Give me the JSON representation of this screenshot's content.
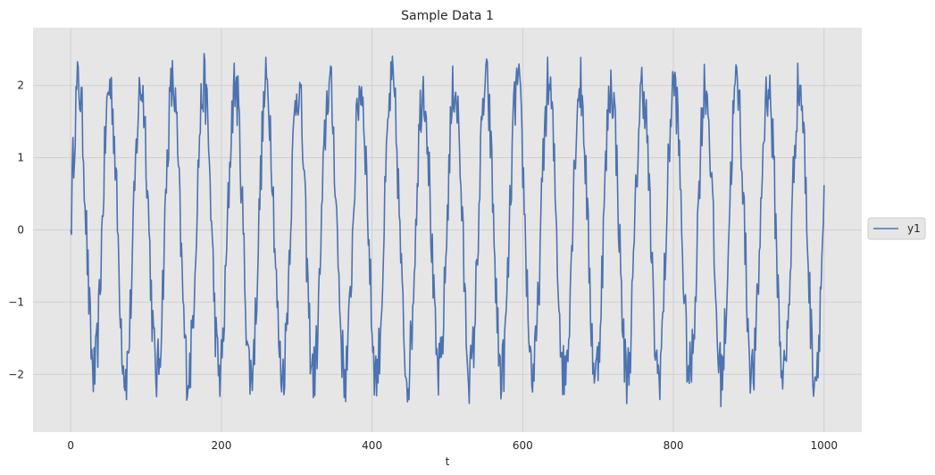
{
  "chart_data": {
    "type": "line",
    "title": "Sample Data 1",
    "xlabel": "t",
    "ylabel": "",
    "xlim": [
      -50,
      1050
    ],
    "ylim": [
      -2.8,
      2.8
    ],
    "xticks": [
      0,
      200,
      400,
      600,
      800,
      1000
    ],
    "yticks": [
      -2,
      -1,
      0,
      1,
      2
    ],
    "xtick_labels": [
      "0",
      "200",
      "400",
      "600",
      "800",
      "1000"
    ],
    "ytick_labels": [
      "−2",
      "−1",
      "0",
      "1",
      "2"
    ],
    "grid": true,
    "legend_position": "center-right-outside",
    "series": [
      {
        "name": "y1",
        "color": "#4c72b0",
        "signal": {
          "x_start": 0,
          "x_end": 1000,
          "step": 1,
          "amplitude": 2,
          "period": 41.6,
          "noise_amplitude": 0.45
        }
      }
    ]
  }
}
